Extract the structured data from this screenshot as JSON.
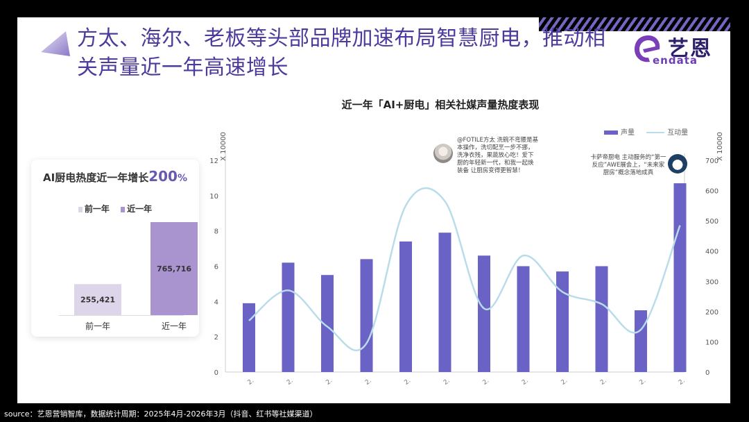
{
  "slide": {
    "title": "方太、海尔、老板等头部品牌加速布局智慧厨电，推动相关声量近一年高速增长",
    "title_line1": "方太、海尔、老板等头部品牌加速布局智慧厨电，推动相",
    "title_line2": "关声量近一年高速增长",
    "logo_text": "艺恩",
    "logo_sub": "endata",
    "source": "source：艺恩营销智库，数据统计周期：2025年4月-2026年3月（抖音、红书等社媒渠道）"
  },
  "left_card": {
    "title_prefix": "AI厨电热度近一年增长",
    "title_value": "200",
    "title_suffix": "%",
    "legend": [
      "前一年",
      "近一年"
    ]
  },
  "main_chart": {
    "title": "近一年「AI+厨电」相关社媒声量热度表现",
    "left_unit": "X 10000",
    "right_unit": "X 10000",
    "legend": {
      "bar": "声量",
      "line": "互动量"
    },
    "annotations": [
      {
        "text": "@FOTILE方太 洗碗不弯腰是基本操作，洗切配烹一步不挪，洗净衣残，果蔬放心吃！爱下厨的年轻新一代，和我一起焕装备 让厨房变得更智慧！"
      },
      {
        "text": "卡萨帝厨电 主动服务的“第一反应”AWE展会上，“未来家厨房”概念落地成真"
      }
    ]
  },
  "colors": {
    "title": "#4d3a9c",
    "bar": "#6a62c4",
    "line": "#b9dceb",
    "prev_year": "#ddd5ea",
    "curr_year": "#a994cf",
    "slide_bg": "#ffffff",
    "frame_bg": "#000000"
  },
  "chart_data": [
    {
      "type": "bar",
      "title": "AI厨电热度近一年增长200%",
      "categories": [
        "前一年",
        "近一年"
      ],
      "values": [
        255421,
        765716
      ],
      "value_labels": [
        "255,421",
        "765,716"
      ],
      "grid": false,
      "legend_position": "top"
    },
    {
      "type": "bar+line",
      "title": "近一年「AI+厨电」相关社媒声量热度表现",
      "categories": [
        "2.",
        "2.",
        "2.",
        "2.",
        "2.",
        "2.",
        "2.",
        "2.",
        "2.",
        "2.",
        "2.",
        "2."
      ],
      "series": [
        {
          "name": "声量",
          "type": "bar",
          "axis": "left",
          "values": [
            3.9,
            6.2,
            5.5,
            6.4,
            7.4,
            7.9,
            6.6,
            6.0,
            5.7,
            6.0,
            3.5,
            10.7
          ]
        },
        {
          "name": "互动量",
          "type": "line",
          "axis": "right",
          "values": [
            170,
            270,
            150,
            95,
            550,
            565,
            210,
            385,
            265,
            225,
            140,
            485
          ]
        }
      ],
      "ylim_left": [
        0,
        12
      ],
      "yticks_left": [
        0,
        2,
        4,
        6,
        8,
        10,
        12
      ],
      "ylim_right": [
        0,
        700
      ],
      "yticks_right": [
        0,
        100,
        200,
        300,
        400,
        500,
        600,
        700
      ],
      "ylabel_left": "X 10000",
      "ylabel_right": "X 10000",
      "grid": false,
      "legend_position": "top-right"
    }
  ]
}
